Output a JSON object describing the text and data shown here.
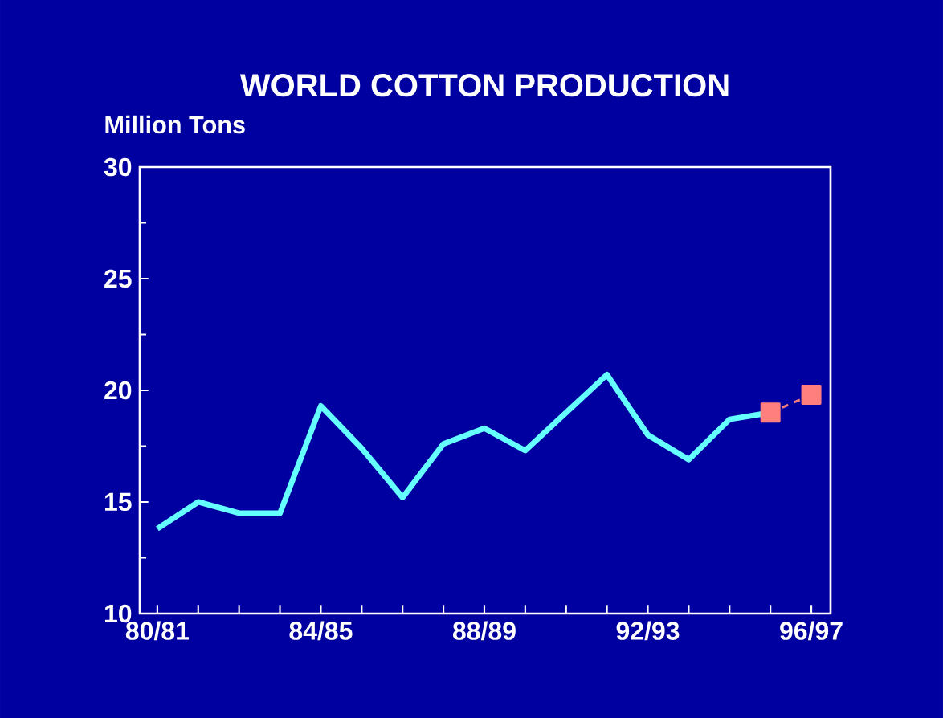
{
  "chart_data": {
    "type": "line",
    "title": "WORLD COTTON PRODUCTION",
    "ylabel": "Million Tons",
    "categories": [
      "80/81",
      null,
      null,
      null,
      "84/85",
      null,
      null,
      null,
      "88/89",
      null,
      null,
      null,
      "92/93",
      null,
      null,
      null,
      "96/97"
    ],
    "series": [
      {
        "color": "#66ffff",
        "marker": "none",
        "line_style": "solid",
        "values": [
          13.8,
          15.0,
          14.5,
          14.5,
          19.3,
          17.4,
          15.2,
          17.6,
          18.3,
          17.3,
          19.0,
          20.7,
          18.0,
          16.9,
          18.7,
          19.0,
          null
        ]
      },
      {
        "color": "#ff7f7f",
        "marker": "square",
        "line_style": "dashed",
        "values": [
          null,
          null,
          null,
          null,
          null,
          null,
          null,
          null,
          null,
          null,
          null,
          null,
          null,
          null,
          null,
          19.0,
          19.8
        ]
      }
    ],
    "ylim": [
      10,
      30
    ],
    "yticks": [
      10,
      15,
      20,
      25,
      30
    ],
    "grid": false
  }
}
